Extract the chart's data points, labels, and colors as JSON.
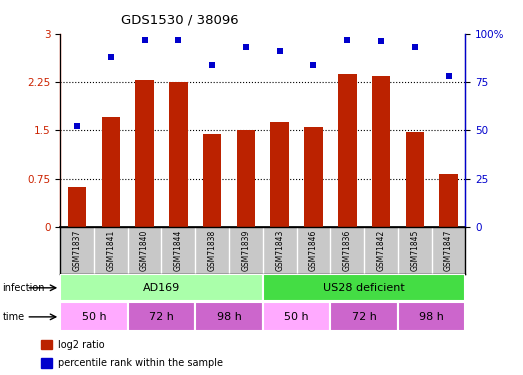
{
  "title": "GDS1530 / 38096",
  "samples": [
    "GSM71837",
    "GSM71841",
    "GSM71840",
    "GSM71844",
    "GSM71838",
    "GSM71839",
    "GSM71843",
    "GSM71846",
    "GSM71836",
    "GSM71842",
    "GSM71845",
    "GSM71847"
  ],
  "log2_ratio": [
    0.62,
    1.7,
    2.28,
    2.25,
    1.45,
    1.5,
    1.63,
    1.55,
    2.38,
    2.35,
    1.48,
    0.82
  ],
  "percentile_rank": [
    52,
    88,
    97,
    97,
    84,
    93,
    91,
    84,
    97,
    96,
    93,
    78
  ],
  "bar_color": "#bb2200",
  "dot_color": "#0000cc",
  "ylim_left": [
    0,
    3
  ],
  "ylim_right": [
    0,
    100
  ],
  "yticks_left": [
    0,
    0.75,
    1.5,
    2.25,
    3
  ],
  "yticks_right": [
    0,
    25,
    50,
    75,
    100
  ],
  "ytick_labels_left": [
    "0",
    "0.75",
    "1.5",
    "2.25",
    "3"
  ],
  "ytick_labels_right": [
    "0",
    "25",
    "50",
    "75",
    "100%"
  ],
  "infection_labels": [
    {
      "text": "AD169",
      "start": 0,
      "end": 6,
      "color": "#aaffaa"
    },
    {
      "text": "US28 deficient",
      "start": 6,
      "end": 12,
      "color": "#44dd44"
    }
  ],
  "time_labels": [
    {
      "text": "50 h",
      "start": 0,
      "end": 2,
      "color": "#ffaaff"
    },
    {
      "text": "72 h",
      "start": 2,
      "end": 4,
      "color": "#cc66cc"
    },
    {
      "text": "98 h",
      "start": 4,
      "end": 6,
      "color": "#cc66cc"
    },
    {
      "text": "50 h",
      "start": 6,
      "end": 8,
      "color": "#ffaaff"
    },
    {
      "text": "72 h",
      "start": 8,
      "end": 10,
      "color": "#cc66cc"
    },
    {
      "text": "98 h",
      "start": 10,
      "end": 12,
      "color": "#cc66cc"
    }
  ],
  "legend_items": [
    {
      "label": "log2 ratio",
      "color": "#bb2200"
    },
    {
      "label": "percentile rank within the sample",
      "color": "#0000cc"
    }
  ],
  "background_color": "#ffffff",
  "sample_box_color": "#c8c8c8"
}
